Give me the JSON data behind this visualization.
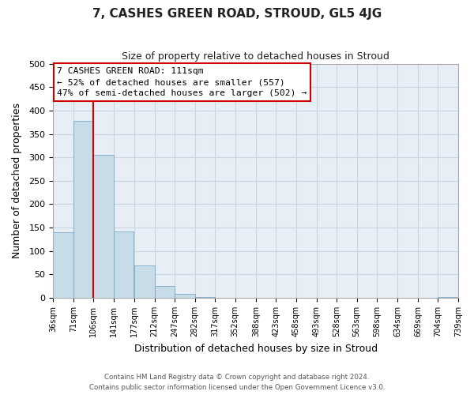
{
  "title": "7, CASHES GREEN ROAD, STROUD, GL5 4JG",
  "subtitle": "Size of property relative to detached houses in Stroud",
  "xlabel": "Distribution of detached houses by size in Stroud",
  "ylabel": "Number of detached properties",
  "bar_color": "#c8dce8",
  "bar_edge_color": "#7aaac8",
  "bin_edges": [
    36,
    71,
    106,
    141,
    177,
    212,
    247,
    282,
    317,
    352,
    388,
    423,
    458,
    493,
    528,
    563,
    598,
    634,
    669,
    704,
    739
  ],
  "bar_heights": [
    140,
    378,
    305,
    141,
    70,
    25,
    8,
    1,
    0,
    0,
    0,
    0,
    0,
    0,
    0,
    0,
    0,
    0,
    0,
    2
  ],
  "tick_labels": [
    "36sqm",
    "71sqm",
    "106sqm",
    "141sqm",
    "177sqm",
    "212sqm",
    "247sqm",
    "282sqm",
    "317sqm",
    "352sqm",
    "388sqm",
    "423sqm",
    "458sqm",
    "493sqm",
    "528sqm",
    "563sqm",
    "598sqm",
    "634sqm",
    "669sqm",
    "704sqm",
    "739sqm"
  ],
  "ylim": [
    0,
    500
  ],
  "yticks": [
    0,
    50,
    100,
    150,
    200,
    250,
    300,
    350,
    400,
    450,
    500
  ],
  "vline_x": 106,
  "vline_color": "#cc0000",
  "annotation_title": "7 CASHES GREEN ROAD: 111sqm",
  "annotation_line1": "← 52% of detached houses are smaller (557)",
  "annotation_line2": "47% of semi-detached houses are larger (502) →",
  "annotation_box_color": "#ffffff",
  "annotation_box_edge": "#cc0000",
  "grid_color": "#c8d4e0",
  "bg_color": "#ffffff",
  "plot_bg_color": "#e8eef5",
  "footer_line1": "Contains HM Land Registry data © Crown copyright and database right 2024.",
  "footer_line2": "Contains public sector information licensed under the Open Government Licence v3.0."
}
